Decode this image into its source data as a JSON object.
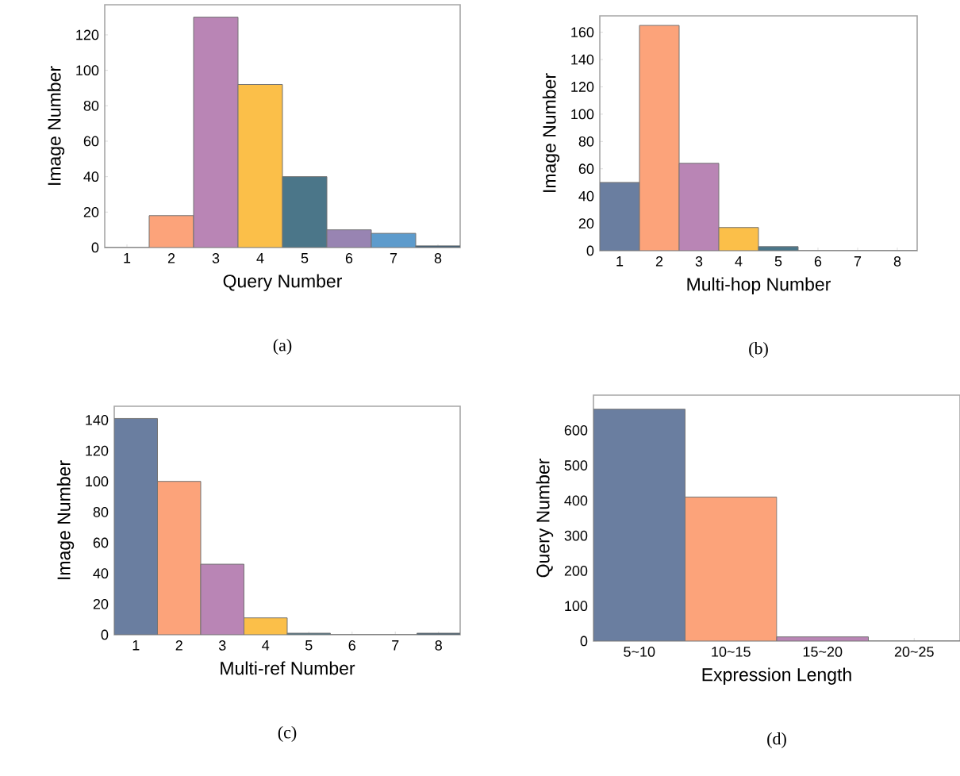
{
  "chart_data": [
    {
      "type": "bar",
      "xlabel": "Query Number",
      "ylabel": "Image Number",
      "categories": [
        "1",
        "2",
        "3",
        "4",
        "5",
        "6",
        "7",
        "8"
      ],
      "values": [
        0,
        18,
        130,
        92,
        40,
        10,
        8,
        1
      ],
      "colors": [
        "#6a7ea0",
        "#fca37a",
        "#b985b5",
        "#fbbf49",
        "#4b7689",
        "#9884b2",
        "#5d9bcc",
        "#3d5c73"
      ],
      "ylim": [
        0,
        137
      ],
      "yticks": [
        0,
        20,
        40,
        60,
        80,
        100,
        120
      ],
      "annotations": [
        "(a)"
      ]
    },
    {
      "type": "bar",
      "xlabel": "Multi-hop Number",
      "ylabel": "Image Number",
      "categories": [
        "1",
        "2",
        "3",
        "4",
        "5",
        "6",
        "7",
        "8"
      ],
      "values": [
        50,
        165,
        64,
        17,
        3,
        0,
        0,
        0
      ],
      "colors": [
        "#6a7ea0",
        "#fca37a",
        "#b985b5",
        "#fbbf49",
        "#4b7689",
        "#9884b2",
        "#5d9bcc",
        "#3d5c73"
      ],
      "ylim": [
        0,
        172
      ],
      "yticks": [
        0,
        20,
        40,
        60,
        80,
        100,
        120,
        140,
        160
      ],
      "annotations": [
        "(b)"
      ]
    },
    {
      "type": "bar",
      "xlabel": "Multi-ref Number",
      "ylabel": "Image Number",
      "categories": [
        "1",
        "2",
        "3",
        "4",
        "5",
        "6",
        "7",
        "8"
      ],
      "values": [
        141,
        100,
        46,
        11,
        1,
        0,
        0,
        1
      ],
      "colors": [
        "#6a7ea0",
        "#fca37a",
        "#b985b5",
        "#fbbf49",
        "#4b7689",
        "#9884b2",
        "#5d9bcc",
        "#3d5c73"
      ],
      "ylim": [
        0,
        149
      ],
      "yticks": [
        0,
        20,
        40,
        60,
        80,
        100,
        120,
        140
      ],
      "annotations": [
        "(c)"
      ]
    },
    {
      "type": "bar",
      "xlabel": "Expression Length",
      "ylabel": "Query Number",
      "categories": [
        "5~10",
        "10~15",
        "15~20",
        "20~25"
      ],
      "values": [
        660,
        410,
        12,
        0
      ],
      "colors": [
        "#6a7ea0",
        "#fca37a",
        "#b985b5",
        "#fbbf49"
      ],
      "ylim": [
        0,
        700
      ],
      "yticks": [
        0,
        100,
        200,
        300,
        400,
        500,
        600
      ],
      "annotations": [
        "(d)"
      ]
    }
  ]
}
